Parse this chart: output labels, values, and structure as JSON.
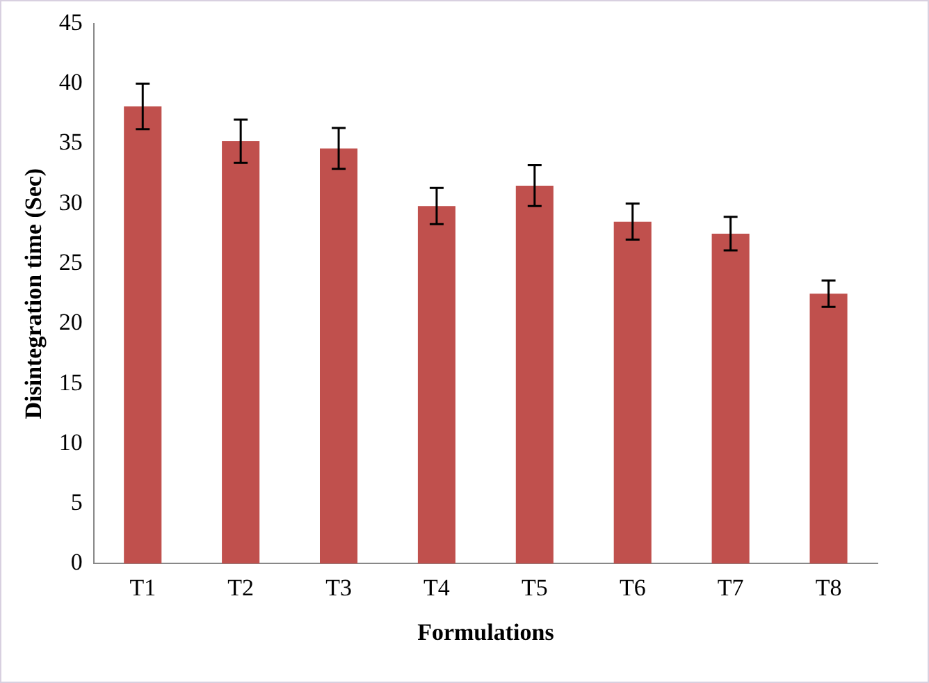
{
  "chart_data": {
    "type": "bar",
    "xlabel": "Formulations",
    "ylabel": "Disintegration time (Sec)",
    "categories": [
      "T1",
      "T2",
      "T3",
      "T4",
      "T5",
      "T6",
      "T7",
      "T8"
    ],
    "values": [
      38.1,
      35.2,
      34.6,
      29.8,
      31.5,
      28.5,
      27.5,
      22.5
    ],
    "errors": [
      1.9,
      1.8,
      1.7,
      1.5,
      1.7,
      1.5,
      1.4,
      1.1
    ],
    "color": "#c0504d",
    "ylim": [
      0,
      45
    ],
    "yticks": [
      0,
      5,
      10,
      15,
      20,
      25,
      30,
      35,
      40,
      45
    ],
    "grid": false,
    "legend": false
  }
}
